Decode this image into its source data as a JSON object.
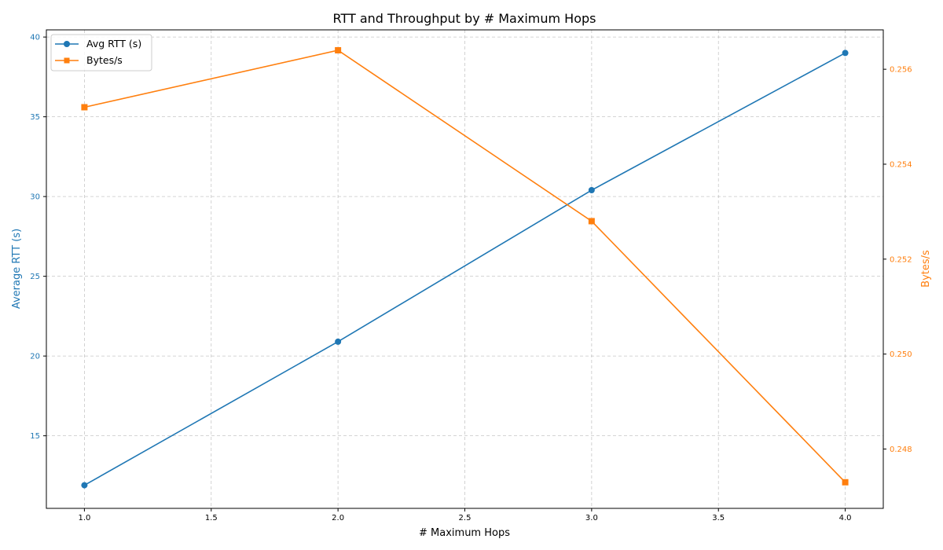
{
  "chart_data": {
    "type": "line",
    "title": "RTT and Throughput by # Maximum Hops",
    "xlabel": "# Maximum Hops",
    "ylabel_left": "Average RTT (s)",
    "ylabel_right": "Bytes/s",
    "x": [
      1.0,
      2.0,
      3.0,
      4.0
    ],
    "xlim": [
      0.85,
      4.15
    ],
    "x_ticks": [
      "1.0",
      "1.5",
      "2.0",
      "2.5",
      "3.0",
      "3.5",
      "4.0"
    ],
    "y_left_lim": [
      10.45,
      40.45
    ],
    "y_left_ticks": [
      "15",
      "20",
      "25",
      "30",
      "35",
      "40"
    ],
    "y_right_lim": [
      0.24675,
      0.25683
    ],
    "y_right_ticks": [
      "0.248",
      "0.250",
      "0.252",
      "0.254",
      "0.256"
    ],
    "grid": true,
    "legend_position": "top-left",
    "series": [
      {
        "name": "Avg RTT (s)",
        "axis": "left",
        "marker": "circle",
        "color": "#1f77b4",
        "values": [
          11.9,
          20.9,
          30.4,
          39.0
        ]
      },
      {
        "name": "Bytes/s",
        "axis": "right",
        "marker": "square",
        "color": "#ff7f0e",
        "values": [
          0.2552,
          0.2564,
          0.2528,
          0.2473
        ]
      }
    ]
  }
}
